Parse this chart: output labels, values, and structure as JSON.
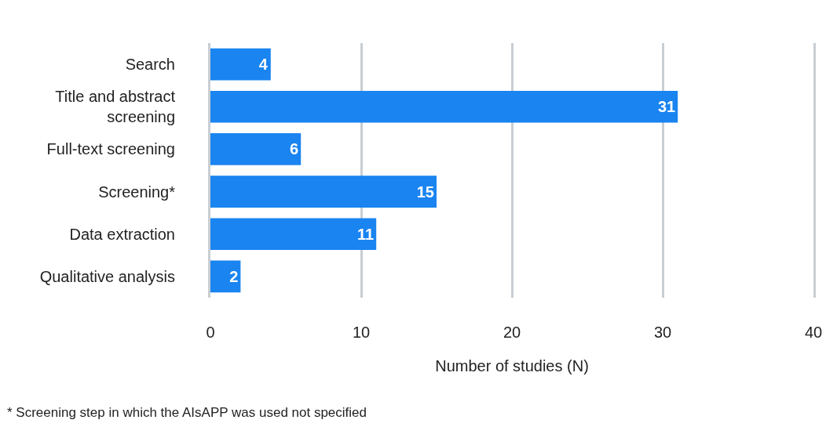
{
  "chart_data": {
    "type": "bar",
    "orientation": "horizontal",
    "categories": [
      "Search",
      "Title and abstract screening",
      "Full-text screening",
      "Screening*",
      "Data extraction",
      "Qualitative analysis"
    ],
    "values": [
      4,
      31,
      6,
      15,
      11,
      2
    ],
    "color": "#1a84f0",
    "xlim": [
      0,
      40
    ],
    "xticks": [
      0,
      10,
      20,
      30,
      40
    ],
    "xlabel": "Number of studies (N)",
    "grid": "x",
    "data_labels": true,
    "legend": false,
    "annotations": [
      "* Screening step in which the AIsAPP was used not specified"
    ]
  }
}
